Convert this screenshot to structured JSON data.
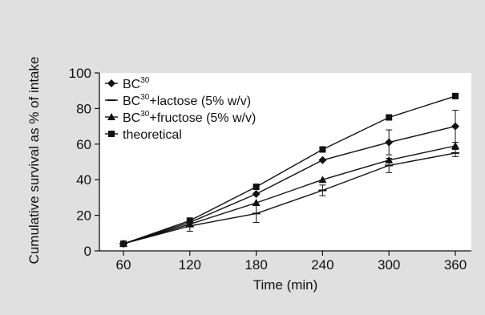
{
  "colors": {
    "background": "#e0e0e0",
    "plot_background": "#ffffff",
    "ink": "#111111"
  },
  "chart_data": {
    "type": "line",
    "title": "",
    "xlabel": "Time (min)",
    "ylabel": "Cumulative survival as % of intake",
    "x": [
      60,
      120,
      180,
      240,
      300,
      360
    ],
    "xlim": [
      40,
      370
    ],
    "ylim": [
      0,
      100
    ],
    "yticks": [
      0,
      20,
      40,
      60,
      80,
      100
    ],
    "xticks": [
      60,
      120,
      180,
      240,
      300,
      360
    ],
    "grid": false,
    "legend_position": "top-left",
    "series": [
      {
        "name": "BC30",
        "legend_base": "BC",
        "legend_sup": "30",
        "legend_suffix": "",
        "marker": "diamond",
        "values": [
          4,
          16,
          32,
          51,
          61,
          70
        ],
        "errors": [
          0,
          0,
          0,
          0,
          7,
          9
        ]
      },
      {
        "name": "BC30+lactose (5% w/v)",
        "legend_base": "BC",
        "legend_sup": "30",
        "legend_suffix": "+lactose (5% w/v)",
        "marker": "dash",
        "values": [
          4,
          14,
          21,
          34,
          48,
          55
        ],
        "errors": [
          0,
          3,
          5,
          3,
          4,
          2
        ]
      },
      {
        "name": "BC30+fructose (5% w/v)",
        "legend_base": "BC",
        "legend_sup": "30",
        "legend_suffix": "+fructose (5% w/v)",
        "marker": "triangle",
        "values": [
          4,
          15,
          27,
          40,
          51,
          59
        ],
        "errors": [
          0,
          0,
          0,
          0,
          0,
          0
        ]
      },
      {
        "name": "theoretical",
        "legend_base": "theoretical",
        "legend_sup": "",
        "legend_suffix": "",
        "marker": "square",
        "values": [
          4,
          17,
          36,
          57,
          75,
          87
        ],
        "errors": [
          0,
          0,
          0,
          0,
          0,
          0
        ]
      }
    ]
  }
}
